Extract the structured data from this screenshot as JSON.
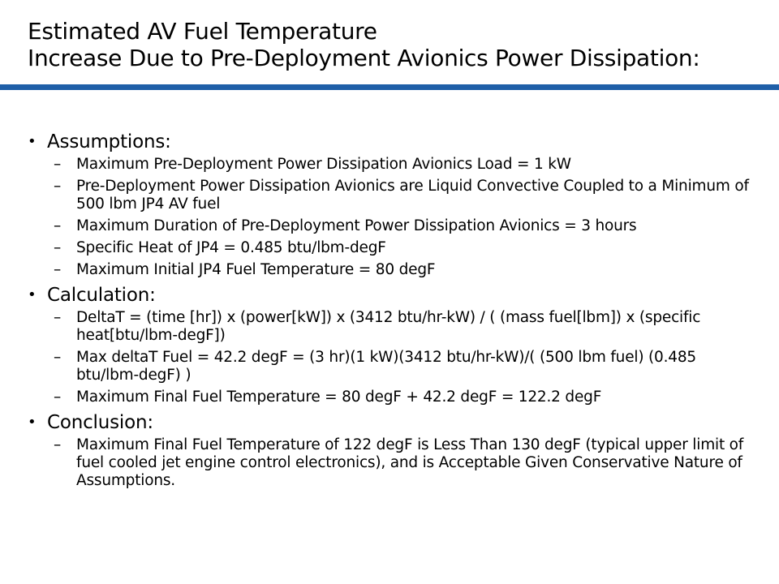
{
  "title": {
    "line1": "Estimated AV Fuel Temperature",
    "line2": "Increase Due to Pre-Deployment Avionics Power Dissipation:"
  },
  "colors": {
    "accent_rule": "#1f5fa8",
    "text": "#000000",
    "background": "#ffffff"
  },
  "bullet_glyph": "•",
  "dash_glyph": "–",
  "sections": [
    {
      "heading": "Assumptions:",
      "items": [
        "Maximum Pre-Deployment Power Dissipation Avionics Load = 1 kW",
        "Pre-Deployment Power Dissipation Avionics are Liquid Convective Coupled to a Minimum of 500 lbm JP4 AV fuel",
        "Maximum Duration of Pre-Deployment Power Dissipation Avionics = 3 hours",
        "Specific Heat of JP4 = 0.485 btu/lbm-degF",
        "Maximum Initial JP4 Fuel Temperature = 80 degF"
      ]
    },
    {
      "heading": "Calculation:",
      "items": [
        "DeltaT = (time [hr]) x (power[kW]) x (3412 btu/hr-kW) / ( (mass fuel[lbm]) x (specific heat[btu/lbm-degF])",
        "Max deltaT Fuel = 42.2 degF = (3 hr)(1 kW)(3412 btu/hr-kW)/( (500 lbm fuel) (0.485 btu/lbm-degF) )",
        "Maximum Final Fuel Temperature = 80 degF + 42.2 degF = 122.2 degF"
      ]
    },
    {
      "heading": "Conclusion:",
      "items": [
        "Maximum Final Fuel Temperature of 122 degF is Less Than 130 degF (typical upper limit of fuel cooled jet engine control electronics), and is Acceptable Given Conservative Nature of Assumptions."
      ]
    }
  ]
}
